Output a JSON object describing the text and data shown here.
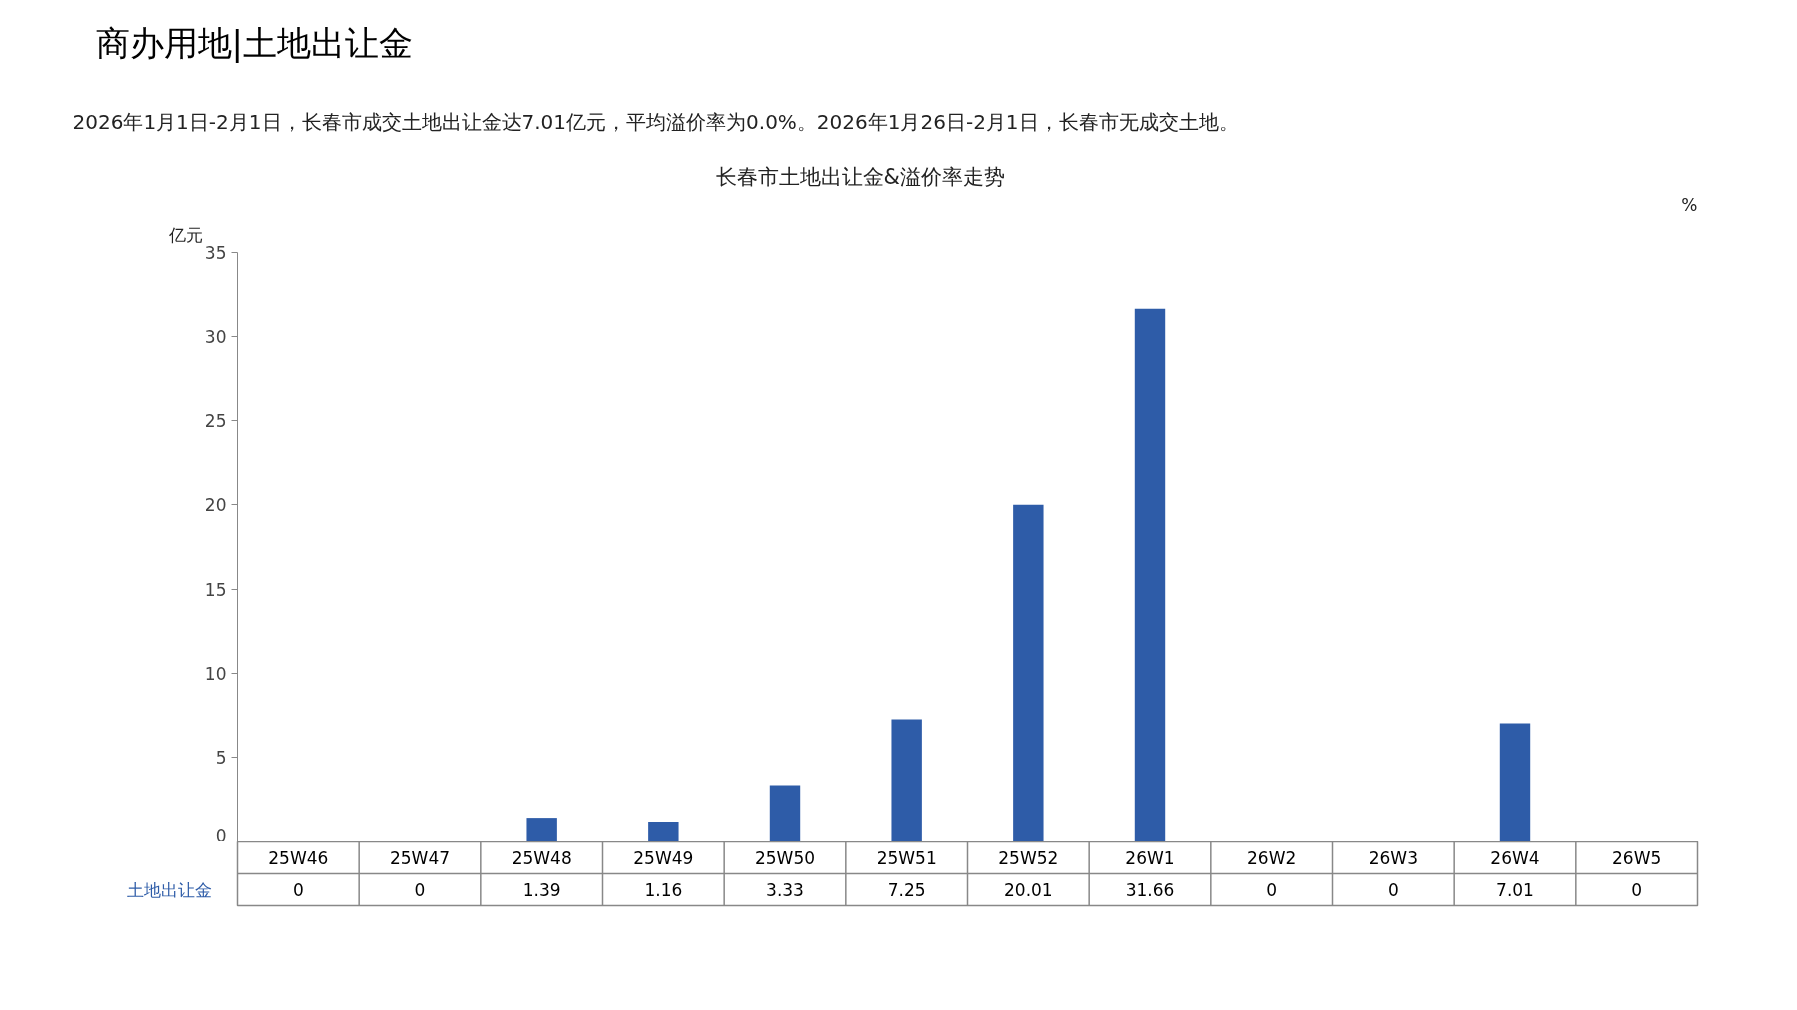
{
  "chart_data": {
    "type": "bar",
    "title": "长春市土地出让金&溢价率走势",
    "subtitle": "2026年1月1日-2月1日，长春市成交土地出让金达7.01亿元，平均溢价率为0.0%。2026年1月26日-2月1日，长春市无成交土地。",
    "annotations": [
      "商办用地|土地出让金"
    ],
    "ylabel": "亿元",
    "y2label": "%",
    "categories": [
      "25W46",
      "25W47",
      "25W48",
      "25W49",
      "25W50",
      "25W51",
      "25W52",
      "26W1",
      "26W2",
      "26W3",
      "26W4",
      "26W5"
    ],
    "series": [
      {
        "name": "土地出让金",
        "color": "#2e5ca8",
        "values": [
          0,
          0,
          1.39,
          1.16,
          3.33,
          7.25,
          20.01,
          31.66,
          0,
          0,
          7.01,
          0
        ]
      }
    ],
    "ylim": [
      0,
      35
    ],
    "yticks": [
      0,
      5,
      10,
      15,
      20,
      25,
      30,
      35
    ],
    "data_labels": true
  }
}
